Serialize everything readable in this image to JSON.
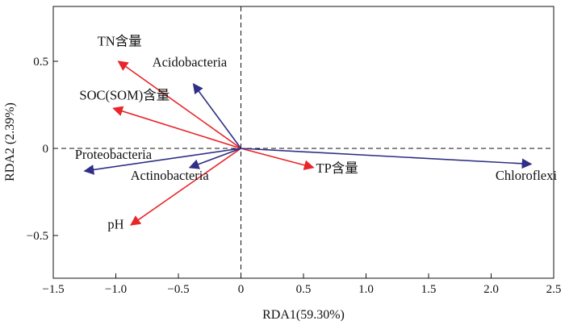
{
  "chart_data": {
    "type": "scatter",
    "subtype": "rda-biplot",
    "title": "",
    "xlabel": "RDA1(59.30%)",
    "ylabel": "RDA2 (2.39%)",
    "xlim": [
      -1.5,
      2.5
    ],
    "ylim": [
      -0.75,
      0.8
    ],
    "xticks": [
      -1.5,
      -1.0,
      -0.5,
      0,
      0.5,
      1.0,
      1.5,
      2.0,
      2.5
    ],
    "xtick_labels": [
      "−1.5",
      "−1.0",
      "−0.5",
      "0",
      "0.5",
      "1.0",
      "1.5",
      "2.0",
      "2.5"
    ],
    "yticks": [
      0.5,
      0,
      -0.5
    ],
    "ytick_labels": [
      "0.5",
      "0",
      "−0.5"
    ],
    "grid": false,
    "reference_lines": [
      {
        "axis": "x",
        "value": 0,
        "style": "dashed"
      },
      {
        "axis": "y",
        "value": 0,
        "style": "dashed"
      }
    ],
    "series": [
      {
        "color": "#e8262a",
        "arrows": [
          {
            "label": "TN含量",
            "x": -0.98,
            "y": 0.5,
            "label_x": -0.97,
            "label_y": 0.59,
            "anchor": "middle"
          },
          {
            "label": "SOC(SOM)含量",
            "x": -1.02,
            "y": 0.23,
            "label_x": -0.93,
            "label_y": 0.28,
            "anchor": "middle"
          },
          {
            "label": "TP含量",
            "x": 0.58,
            "y": -0.11,
            "label_x": 0.6,
            "label_y": -0.14,
            "anchor": "start"
          },
          {
            "label": "pH",
            "x": -0.88,
            "y": -0.44,
            "label_x": -1.0,
            "label_y": -0.46,
            "anchor": "middle"
          }
        ]
      },
      {
        "color": "#2f2f85",
        "arrows": [
          {
            "label": "Acidobacteria",
            "x": -0.38,
            "y": 0.37,
            "label_x": -0.41,
            "label_y": 0.47,
            "anchor": "middle"
          },
          {
            "label": "Proteobacteria",
            "x": -1.25,
            "y": -0.13,
            "label_x": -1.02,
            "label_y": -0.06,
            "anchor": "middle"
          },
          {
            "label": "Actinobacteria",
            "x": -0.41,
            "y": -0.11,
            "label_x": -0.57,
            "label_y": -0.18,
            "anchor": "middle"
          },
          {
            "label": "Chloroflexi",
            "x": 2.32,
            "y": -0.09,
            "label_x": 2.28,
            "label_y": -0.18,
            "anchor": "middle"
          }
        ]
      }
    ]
  }
}
